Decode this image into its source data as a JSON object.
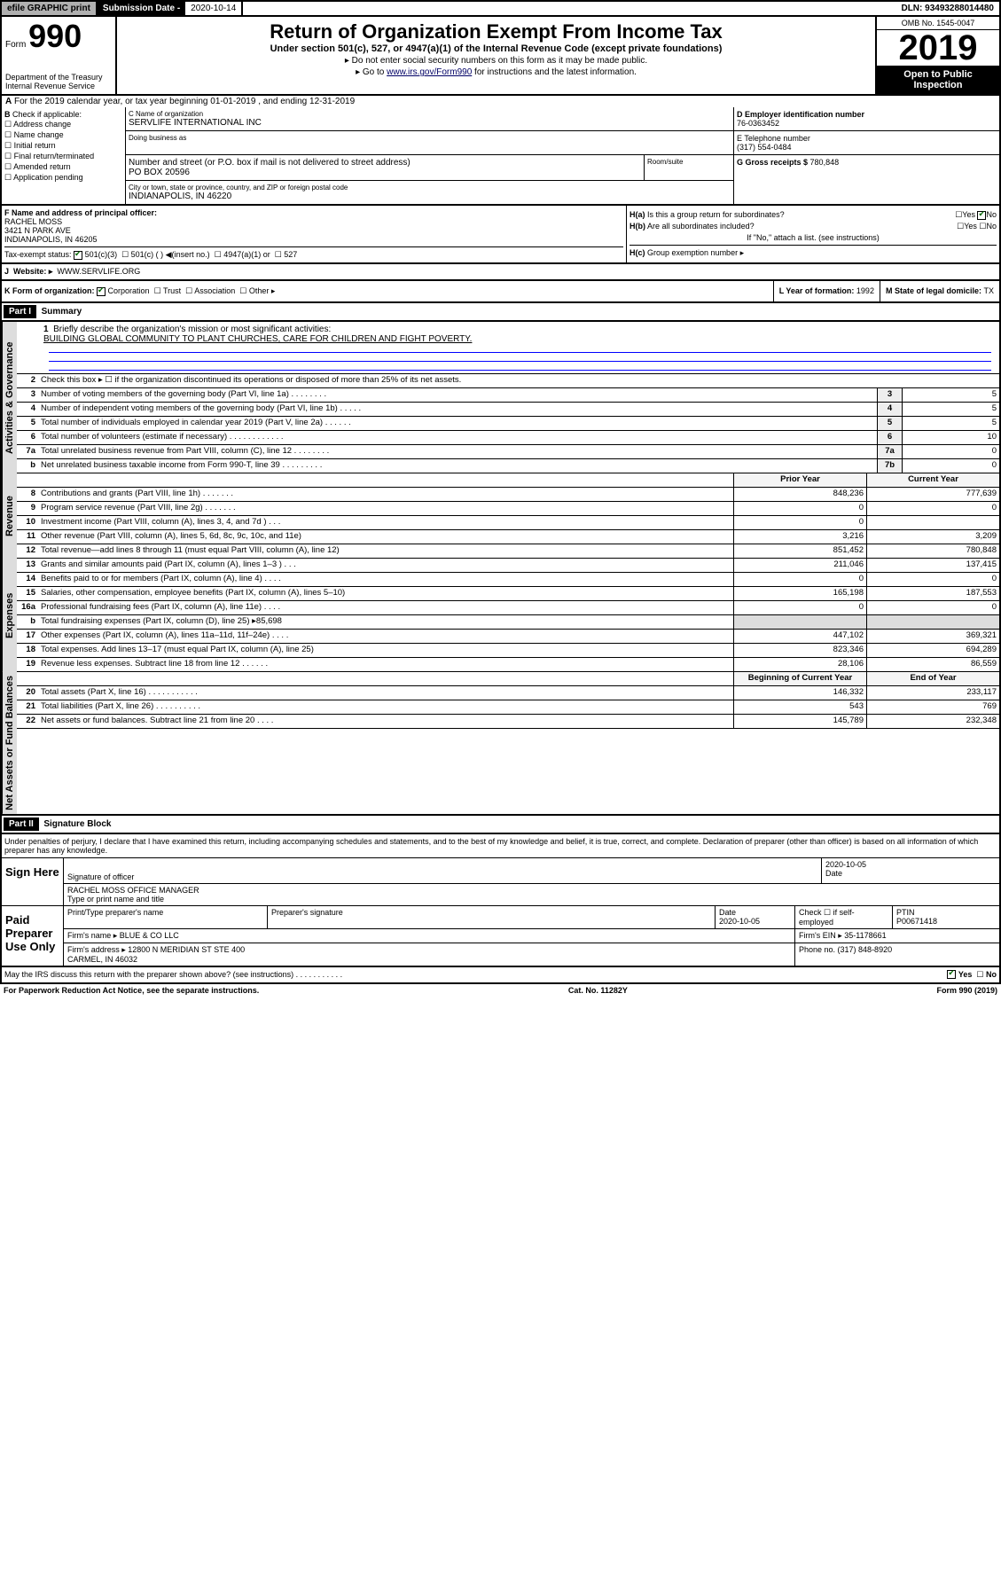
{
  "topbar": {
    "efile": "efile GRAPHIC print",
    "sub_date_lbl": "Submission Date - ",
    "sub_date": "2020-10-14",
    "dln": "DLN: 93493288014480"
  },
  "header": {
    "form_prefix": "Form",
    "form_num": "990",
    "dept": "Department of the Treasury\nInternal Revenue Service",
    "title": "Return of Organization Exempt From Income Tax",
    "subtitle": "Under section 501(c), 527, or 4947(a)(1) of the Internal Revenue Code (except private foundations)",
    "hint1": "▸ Do not enter social security numbers on this form as it may be made public.",
    "hint2_pre": "▸ Go to ",
    "hint2_link": "www.irs.gov/Form990",
    "hint2_post": " for instructions and the latest information.",
    "omb": "OMB No. 1545-0047",
    "year": "2019",
    "inspection": "Open to Public Inspection"
  },
  "a": "For the 2019 calendar year, or tax year beginning 01-01-2019    , and ending 12-31-2019",
  "b": {
    "label": "Check if applicable:",
    "opts": [
      "Address change",
      "Name change",
      "Initial return",
      "Final return/terminated",
      "Amended return",
      "Application pending"
    ]
  },
  "c": {
    "name_lbl": "C Name of organization",
    "name": "SERVLIFE INTERNATIONAL INC",
    "dba_lbl": "Doing business as",
    "street_lbl": "Number and street (or P.O. box if mail is not delivered to street address)",
    "street": "PO BOX 20596",
    "room_lbl": "Room/suite",
    "city_lbl": "City or town, state or province, country, and ZIP or foreign postal code",
    "city": "INDIANAPOLIS, IN  46220"
  },
  "d": {
    "lbl": "D Employer identification number",
    "val": "76-0363452"
  },
  "e": {
    "lbl": "E Telephone number",
    "val": "(317) 554-0484"
  },
  "g": {
    "lbl": "G Gross receipts $ ",
    "val": "780,848"
  },
  "f": {
    "lbl": "F  Name and address of principal officer:",
    "name": "RACHEL MOSS",
    "addr1": "3421 N PARK AVE",
    "addr2": "INDIANAPOLIS, IN  46205"
  },
  "h": {
    "a": "Is this a group return for subordinates?",
    "b": "Are all subordinates included?",
    "b2": "If \"No,\" attach a list. (see instructions)",
    "c": "Group exemption number ▸"
  },
  "tax": {
    "lbl": "Tax-exempt status:",
    "c3": "501(c)(3)",
    "c": "501(c) (   ) ◀(insert no.)",
    "a1": "4947(a)(1) or",
    "s527": "527"
  },
  "j": {
    "lbl": "Website: ▸",
    "val": "WWW.SERVLIFE.ORG"
  },
  "k": {
    "lbl": "K Form of organization:",
    "corp": "Corporation",
    "trust": "Trust",
    "assoc": "Association",
    "other": "Other ▸"
  },
  "l": {
    "lbl": "L Year of formation: ",
    "val": "1992"
  },
  "m": {
    "lbl": "M State of legal domicile: ",
    "val": "TX"
  },
  "part1": {
    "hdr": "Part I",
    "title": "Summary",
    "tabs": [
      "Activities & Governance",
      "Revenue",
      "Expenses",
      "Net Assets or Fund Balances"
    ],
    "l1": "Briefly describe the organization's mission or most significant activities:",
    "mission": "BUILDING GLOBAL COMMUNITY TO PLANT CHURCHES, CARE FOR CHILDREN AND FIGHT POVERTY.",
    "l2": "Check this box ▸ ☐  if the organization discontinued its operations or disposed of more than 25% of its net assets.",
    "rows_ag": [
      {
        "n": "3",
        "t": "Number of voting members of the governing body (Part VI, line 1a)   .    .    .    .    .    .    .    .",
        "b": "3",
        "v": "5"
      },
      {
        "n": "4",
        "t": "Number of independent voting members of the governing body (Part VI, line 1b)    .    .    .    .    .",
        "b": "4",
        "v": "5"
      },
      {
        "n": "5",
        "t": "Total number of individuals employed in calendar year 2019 (Part V, line 2a)   .    .    .    .    .    .",
        "b": "5",
        "v": "5"
      },
      {
        "n": "6",
        "t": "Total number of volunteers (estimate if necessary)    .    .    .    .    .    .    .    .    .    .    .    .",
        "b": "6",
        "v": "10"
      },
      {
        "n": "7a",
        "t": "Total unrelated business revenue from Part VIII, column (C), line 12   .    .    .    .    .    .    .    .",
        "b": "7a",
        "v": "0"
      },
      {
        "n": "b",
        "t": "Net unrelated business taxable income from Form 990-T, line 39    .    .    .    .    .    .    .    .    .",
        "b": "7b",
        "v": "0"
      }
    ],
    "col_hdr": {
      "prior": "Prior Year",
      "current": "Current Year",
      "beg": "Beginning of Current Year",
      "end": "End of Year"
    },
    "rows_rev": [
      {
        "n": "8",
        "t": "Contributions and grants (Part VIII, line 1h)    .    .    .    .    .    .    .",
        "p": "848,236",
        "c": "777,639"
      },
      {
        "n": "9",
        "t": "Program service revenue (Part VIII, line 2g)    .    .    .    .    .    .    .",
        "p": "0",
        "c": "0"
      },
      {
        "n": "10",
        "t": "Investment income (Part VIII, column (A), lines 3, 4, and 7d )    .    .    .",
        "p": "0",
        "c": ""
      },
      {
        "n": "11",
        "t": "Other revenue (Part VIII, column (A), lines 5, 6d, 8c, 9c, 10c, and 11e)",
        "p": "3,216",
        "c": "3,209"
      },
      {
        "n": "12",
        "t": "Total revenue—add lines 8 through 11 (must equal Part VIII, column (A), line 12)",
        "p": "851,452",
        "c": "780,848"
      }
    ],
    "rows_exp": [
      {
        "n": "13",
        "t": "Grants and similar amounts paid (Part IX, column (A), lines 1–3 )   .    .    .",
        "p": "211,046",
        "c": "137,415"
      },
      {
        "n": "14",
        "t": "Benefits paid to or for members (Part IX, column (A), line 4)    .    .    .    .",
        "p": "0",
        "c": "0"
      },
      {
        "n": "15",
        "t": "Salaries, other compensation, employee benefits (Part IX, column (A), lines 5–10)",
        "p": "165,198",
        "c": "187,553"
      },
      {
        "n": "16a",
        "t": "Professional fundraising fees (Part IX, column (A), line 11e)    .    .    .    .",
        "p": "0",
        "c": "0"
      },
      {
        "n": "b",
        "t": "Total fundraising expenses (Part IX, column (D), line 25) ▸85,698",
        "p": "",
        "c": "",
        "grey": true
      },
      {
        "n": "17",
        "t": "Other expenses (Part IX, column (A), lines 11a–11d, 11f–24e)   .    .    .    .",
        "p": "447,102",
        "c": "369,321"
      },
      {
        "n": "18",
        "t": "Total expenses. Add lines 13–17 (must equal Part IX, column (A), line 25)",
        "p": "823,346",
        "c": "694,289"
      },
      {
        "n": "19",
        "t": "Revenue less expenses. Subtract line 18 from line 12    .    .    .    .    .    .",
        "p": "28,106",
        "c": "86,559"
      }
    ],
    "rows_net": [
      {
        "n": "20",
        "t": "Total assets (Part X, line 16)    .    .    .    .    .    .    .    .    .    .    .",
        "p": "146,332",
        "c": "233,117"
      },
      {
        "n": "21",
        "t": "Total liabilities (Part X, line 26)    .    .    .    .    .    .    .    .    .    .",
        "p": "543",
        "c": "769"
      },
      {
        "n": "22",
        "t": "Net assets or fund balances. Subtract line 21 from line 20   .    .    .    .",
        "p": "145,789",
        "c": "232,348"
      }
    ]
  },
  "part2": {
    "hdr": "Part II",
    "title": "Signature Block",
    "declare": "Under penalties of perjury, I declare that I have examined this return, including accompanying schedules and statements, and to the best of my knowledge and belief, it is true, correct, and complete. Declaration of preparer (other than officer) is based on all information of which preparer has any knowledge.",
    "sign_here": "Sign Here",
    "sig_officer": "Signature of officer",
    "sig_date": "2020-10-05",
    "date_lbl": "Date",
    "sig_name": "RACHEL MOSS OFFICE MANAGER",
    "sig_name_lbl": "Type or print name and title",
    "paid": "Paid Preparer Use Only",
    "prep_name_lbl": "Print/Type preparer's name",
    "prep_sig_lbl": "Preparer's signature",
    "prep_date": "2020-10-05",
    "check_self": "Check ☐ if self-employed",
    "ptin_lbl": "PTIN",
    "ptin": "P00671418",
    "firm_name_lbl": "Firm's name    ▸ ",
    "firm_name": "BLUE & CO LLC",
    "firm_ein": "Firm's EIN ▸ 35-1178661",
    "firm_addr_lbl": "Firm's address ▸ ",
    "firm_addr": "12800 N MERIDIAN ST STE 400\nCARMEL, IN  46032",
    "firm_phone": "Phone no. (317) 848-8920"
  },
  "discuss": "May the IRS discuss this return with the preparer shown above? (see instructions)    .    .    .    .    .    .    .    .    .    .    .",
  "footer": {
    "left": "For Paperwork Reduction Act Notice, see the separate instructions.",
    "mid": "Cat. No. 11282Y",
    "right": "Form 990 (2019)"
  }
}
